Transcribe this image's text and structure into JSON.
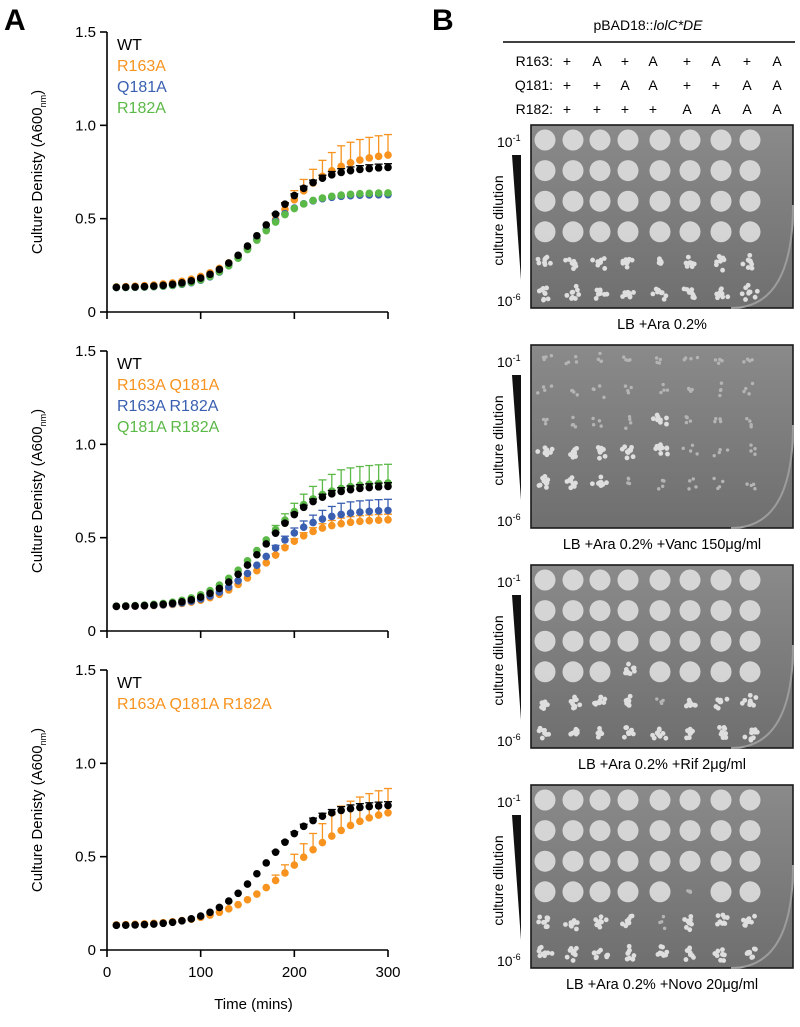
{
  "panel_a_letter": "A",
  "panel_b_letter": "B",
  "colors": {
    "WT": "#000000",
    "orange": "#f7931e",
    "blue": "#3a5fb0",
    "green": "#5bb947"
  },
  "chart_data": [
    {
      "type": "scatter",
      "title": "",
      "xlabel": "",
      "ylabel": "Culture Denisty (A600",
      "ylabel_sub": "nm",
      "ylabel_end": ")",
      "xlim": [
        0,
        300
      ],
      "ylim": [
        0,
        1.5
      ],
      "xticks": [
        0,
        100,
        200,
        300
      ],
      "yticks": [
        "0",
        "0.5",
        "1.0",
        "1.5"
      ],
      "legend": [
        "WT",
        "R163A",
        "Q181A",
        "R182A"
      ],
      "series": [
        {
          "name": "WT",
          "color": "#000000",
          "A": 0.78,
          "k": 0.036,
          "t0": 168,
          "err": 0.02
        },
        {
          "name": "R163A",
          "color": "#f7931e",
          "A": 0.86,
          "k": 0.03,
          "t0": 180,
          "err": 0.11
        },
        {
          "name": "Q181A",
          "color": "#3a5fb0",
          "A": 0.63,
          "k": 0.042,
          "t0": 158,
          "err": 0.01
        },
        {
          "name": "R182A",
          "color": "#5bb947",
          "A": 0.64,
          "k": 0.04,
          "t0": 160,
          "err": 0.01
        }
      ]
    },
    {
      "type": "scatter",
      "title": "",
      "xlabel": "",
      "ylabel": "Culture Denisty (A600",
      "ylabel_sub": "nm",
      "ylabel_end": ")",
      "xlim": [
        0,
        300
      ],
      "ylim": [
        0,
        1.5
      ],
      "xticks": [
        0,
        100,
        200,
        300
      ],
      "yticks": [
        "0",
        "0.5",
        "1.0",
        "1.5"
      ],
      "legend": [
        "WT",
        "R163A Q181A",
        "R163A R182A",
        "Q181A R182A"
      ],
      "series": [
        {
          "name": "WT",
          "color": "#000000",
          "A": 0.78,
          "k": 0.036,
          "t0": 168,
          "err": 0.02
        },
        {
          "name": "R163A Q181A",
          "color": "#f7931e",
          "A": 0.6,
          "k": 0.036,
          "t0": 170,
          "err": 0.03
        },
        {
          "name": "R163A R182A",
          "color": "#3a5fb0",
          "A": 0.65,
          "k": 0.036,
          "t0": 168,
          "err": 0.06
        },
        {
          "name": "Q181A R182A",
          "color": "#5bb947",
          "A": 0.8,
          "k": 0.034,
          "t0": 166,
          "err": 0.1
        }
      ]
    },
    {
      "type": "scatter",
      "title": "",
      "xlabel": "Time (mins)",
      "ylabel": "Culture Denisty (A600",
      "ylabel_sub": "nm",
      "ylabel_end": ")",
      "xlim": [
        0,
        300
      ],
      "ylim": [
        0,
        1.5
      ],
      "xticks": [
        0,
        100,
        200,
        300
      ],
      "yticks": [
        "0",
        "0.5",
        "1.0",
        "1.5"
      ],
      "legend": [
        "WT",
        "R163A Q181A R182A"
      ],
      "series": [
        {
          "name": "WT",
          "color": "#000000",
          "A": 0.78,
          "k": 0.036,
          "t0": 168,
          "err": 0.02
        },
        {
          "name": "R163A Q181A R182A",
          "color": "#f7931e",
          "A": 0.78,
          "k": 0.026,
          "t0": 200,
          "err": 0.13
        }
      ]
    }
  ],
  "panel_b": {
    "header": "pBAD18::",
    "header_italic": "lolC*DE",
    "rows": [
      {
        "label": "R163:",
        "values": [
          "+",
          "A",
          "+",
          "A",
          "+",
          "A",
          "+",
          "A"
        ]
      },
      {
        "label": "Q181:",
        "values": [
          "+",
          "+",
          "A",
          "A",
          "+",
          "+",
          "A",
          "A"
        ]
      },
      {
        "label": "R182:",
        "values": [
          "+",
          "+",
          "+",
          "+",
          "A",
          "A",
          "A",
          "A"
        ]
      }
    ],
    "dilution_label": "culture dilution",
    "dil_top_base": "10",
    "dil_top_exp": "-1",
    "dil_bot_base": "10",
    "dil_bot_exp": "-6",
    "plates": [
      {
        "caption": "LB +Ara 0.2%"
      },
      {
        "caption": "LB +Ara 0.2% +Vanc 150μg/ml"
      },
      {
        "caption": "LB +Ara 0.2% +Rif 2μg/ml"
      },
      {
        "caption": "LB +Ara 0.2% +Novo 20μg/ml"
      }
    ]
  }
}
